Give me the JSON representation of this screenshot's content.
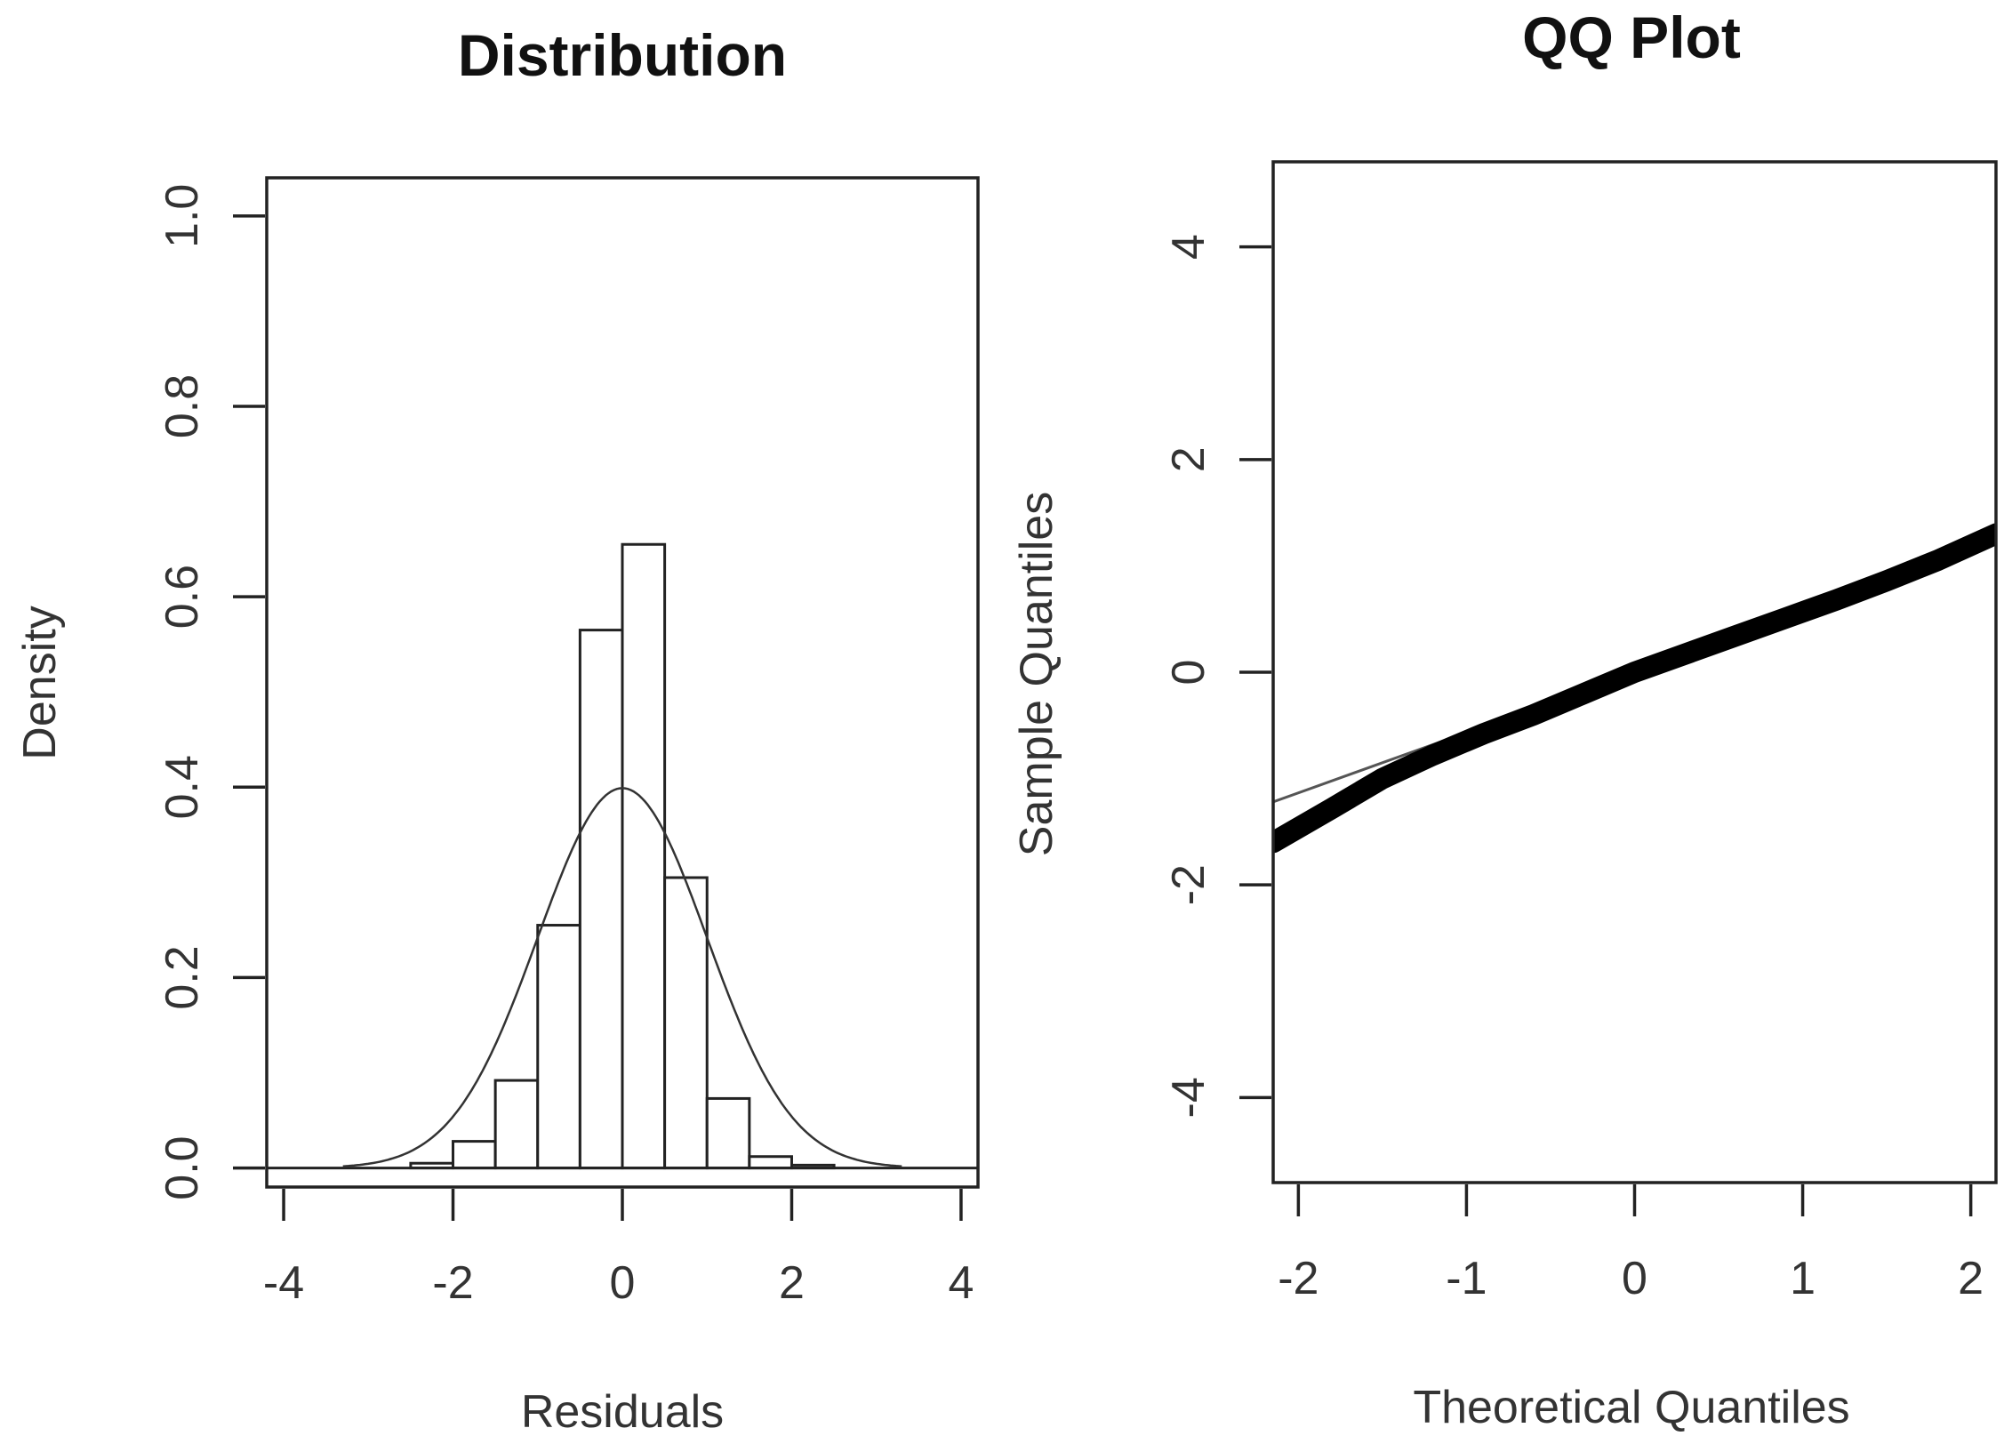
{
  "chart_data": [
    {
      "type": "bar",
      "subtype": "histogram",
      "title": "Distribution",
      "xlabel": "Residuals",
      "ylabel": "Density",
      "xlim": [
        -4.2,
        4.2
      ],
      "ylim": [
        -0.02,
        1.04
      ],
      "xticks": [
        -4,
        -2,
        0,
        2,
        4
      ],
      "yticks": [
        0.0,
        0.2,
        0.4,
        0.6,
        0.8,
        1.0
      ],
      "xtick_labels": [
        "-4",
        "-2",
        "0",
        "2",
        "4"
      ],
      "ytick_labels": [
        "0.0",
        "0.2",
        "0.4",
        "0.6",
        "0.8",
        "1.0"
      ],
      "bins": [
        {
          "x0": -2.5,
          "x1": -2.0,
          "density": 0.005
        },
        {
          "x0": -2.0,
          "x1": -1.5,
          "density": 0.028
        },
        {
          "x0": -1.5,
          "x1": -1.0,
          "density": 0.092
        },
        {
          "x0": -1.0,
          "x1": -0.5,
          "density": 0.255
        },
        {
          "x0": -0.5,
          "x1": 0.0,
          "density": 0.565
        },
        {
          "x0": 0.0,
          "x1": 0.5,
          "density": 0.655
        },
        {
          "x0": 0.5,
          "x1": 1.0,
          "density": 0.305
        },
        {
          "x0": 1.0,
          "x1": 1.5,
          "density": 0.073
        },
        {
          "x0": 1.5,
          "x1": 2.0,
          "density": 0.012
        },
        {
          "x0": 2.0,
          "x1": 2.5,
          "density": 0.003
        }
      ],
      "overlay": {
        "type": "normal-density",
        "mean": 0,
        "sd": 1,
        "x_range": [
          -3.3,
          3.3
        ]
      }
    },
    {
      "type": "line",
      "subtype": "qq-plot",
      "title": "QQ Plot",
      "xlabel": "Theoretical Quantiles",
      "ylabel": "Sample Quantiles",
      "xlim": [
        -2.15,
        2.15
      ],
      "ylim": [
        -4.8,
        4.8
      ],
      "xticks": [
        -2,
        -1,
        0,
        1,
        2
      ],
      "yticks": [
        -4,
        -2,
        0,
        2,
        4
      ],
      "xtick_labels": [
        "-2",
        "-1",
        "0",
        "1",
        "2"
      ],
      "ytick_labels": [
        "-4",
        "-2",
        "0",
        "2",
        "4"
      ],
      "series": [
        {
          "name": "sample points",
          "x": [
            -2.15,
            -1.8,
            -1.5,
            -1.2,
            -0.9,
            -0.6,
            -0.3,
            0.0,
            0.3,
            0.6,
            0.9,
            1.2,
            1.5,
            1.8,
            2.15
          ],
          "y": [
            -1.6,
            -1.28,
            -1.0,
            -0.78,
            -0.58,
            -0.4,
            -0.2,
            0.0,
            0.17,
            0.34,
            0.51,
            0.68,
            0.86,
            1.05,
            1.3
          ]
        },
        {
          "name": "reference line",
          "x": [
            -2.15,
            2.15
          ],
          "y": [
            -1.22,
            1.22
          ]
        }
      ]
    }
  ]
}
